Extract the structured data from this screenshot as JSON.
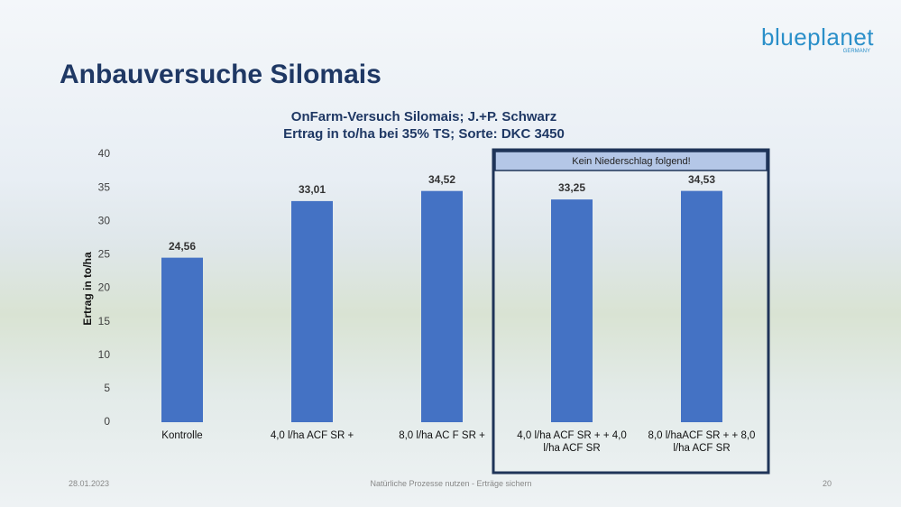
{
  "slide": {
    "title": "Anbauversuche Silomais",
    "logo": "blueplanet",
    "logo_sub": "GERMANY",
    "footer_date": "28.01.2023",
    "footer_text": "Natürliche Prozesse nutzen - Erträge sichern",
    "page_number": "20"
  },
  "chart_data": {
    "type": "bar",
    "title": [
      "OnFarm-Versuch Silomais; J.+P. Schwarz",
      "Ertrag in to/ha bei 35% TS; Sorte: DKC 3450"
    ],
    "y_label": "Ertrag in to/ha",
    "annotation": "Kein Niederschlag folgend!",
    "categories": [
      "Kontrolle",
      "4,0 l/ha ACF SR +",
      "8,0 l/ha AC F SR +",
      "4,0 l/ha ACF SR + + 4,0 l/ha ACF SR",
      "8,0 l/haACF SR + + 8,0 l/ha ACF SR"
    ],
    "values": [
      24.56,
      33.01,
      34.52,
      33.25,
      34.53
    ],
    "value_labels": [
      "24,56",
      "33,01",
      "34,52",
      "33,25",
      "34,53"
    ],
    "color": "#4472c4",
    "ylim": [
      0,
      40
    ],
    "yticks": [
      0,
      5,
      10,
      15,
      20,
      25,
      30,
      35,
      40
    ]
  }
}
